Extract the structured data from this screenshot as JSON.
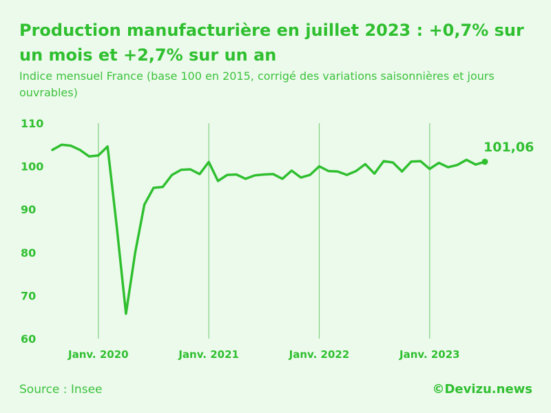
{
  "title": "Production manufacturière en juillet 2023 : +0,7% sur un mois et +2,7% sur un an",
  "subtitle": "Indice mensuel France (base 100 en 2015, corrigé des variations saisonnières et jours ouvrables)",
  "source": "Source : Insee",
  "credit": "©Devizu.news",
  "colors": {
    "background": "#ecfaec",
    "line": "#2fbf2f",
    "text": "#2fbf2f",
    "year_lines": "#7fcf7f"
  },
  "chart_data": {
    "type": "line",
    "title": "Production manufacturière en juillet 2023 : +0,7% sur un mois et +2,7% sur un an",
    "subtitle": "Indice mensuel France (base 100 en 2015, corrigé des variations saisonnières et jours ouvrables)",
    "xlabel": "",
    "ylabel": "",
    "ylim": [
      60,
      110
    ],
    "yticks": [
      "110",
      "100",
      "90",
      "80",
      "70",
      "60"
    ],
    "xticks": [
      "Janv. 2020",
      "Janv. 2021",
      "Janv. 2022",
      "Janv. 2023"
    ],
    "grid": "vertical lines at January of each year",
    "legend": "none",
    "end_label": "101,06",
    "series": [
      {
        "x": [
          "2019-08",
          "2019-09",
          "2019-10",
          "2019-11",
          "2019-12",
          "2020-01",
          "2020-02",
          "2020-03",
          "2020-04",
          "2020-05",
          "2020-06",
          "2020-07",
          "2020-08",
          "2020-09",
          "2020-10",
          "2020-11",
          "2020-12",
          "2021-01",
          "2021-02",
          "2021-03",
          "2021-04",
          "2021-05",
          "2021-06",
          "2021-07",
          "2021-08",
          "2021-09",
          "2021-10",
          "2021-11",
          "2021-12",
          "2022-01",
          "2022-02",
          "2022-03",
          "2022-04",
          "2022-05",
          "2022-06",
          "2022-07",
          "2022-08",
          "2022-09",
          "2022-10",
          "2022-11",
          "2022-12",
          "2023-01",
          "2023-02",
          "2023-03",
          "2023-04",
          "2023-05",
          "2023-06",
          "2023-07"
        ],
        "values": [
          103.8,
          105.0,
          104.8,
          103.8,
          102.3,
          102.5,
          104.6,
          86.0,
          65.8,
          80.0,
          91.1,
          95.0,
          95.2,
          98.0,
          99.2,
          99.3,
          98.2,
          101.0,
          96.6,
          98.0,
          98.1,
          97.1,
          97.9,
          98.1,
          98.2,
          97.1,
          99.0,
          97.4,
          98.0,
          100.0,
          98.9,
          98.8,
          98.0,
          98.9,
          100.5,
          98.3,
          101.2,
          100.9,
          98.8,
          101.1,
          101.2,
          99.4,
          100.8,
          99.8,
          100.3,
          101.5,
          100.4,
          101.06
        ]
      }
    ]
  }
}
